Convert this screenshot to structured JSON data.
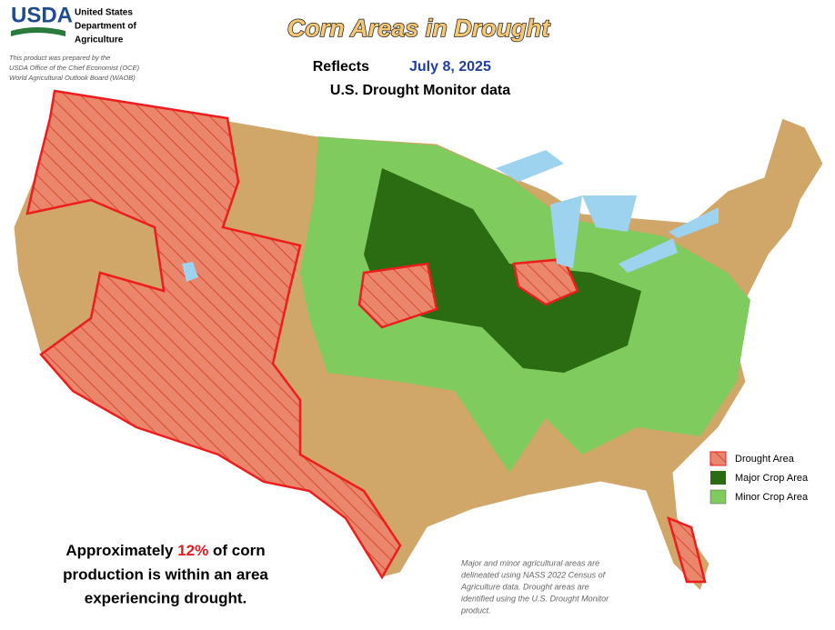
{
  "header": {
    "logo": "USDA",
    "agency": [
      "United States",
      "Department of",
      "Agriculture"
    ],
    "credit": [
      "This product was prepared by the",
      "USDA Office of the Chief Economist (OCE)",
      "World Agricultural Outlook Board (WAOB)"
    ]
  },
  "title": "Corn Areas in Drought",
  "subtitle": {
    "prefix": "Reflects",
    "date": "July 8, 2025",
    "line2": "U.S. Drought Monitor data"
  },
  "legend": [
    "Drought Area",
    "Major Crop Area",
    "Minor Crop Area"
  ],
  "statement": {
    "prefix": "Approximately",
    "percent": "12%",
    "suffix": "of corn",
    "line2": "production is within an area",
    "line3": "experiencing drought."
  },
  "note": [
    "Major and minor agricultural areas are",
    "delineated using NASS 2022 Census of",
    "Agriculture data.  Drought areas are",
    "identified using the U.S. Drought Monitor",
    "product."
  ]
}
